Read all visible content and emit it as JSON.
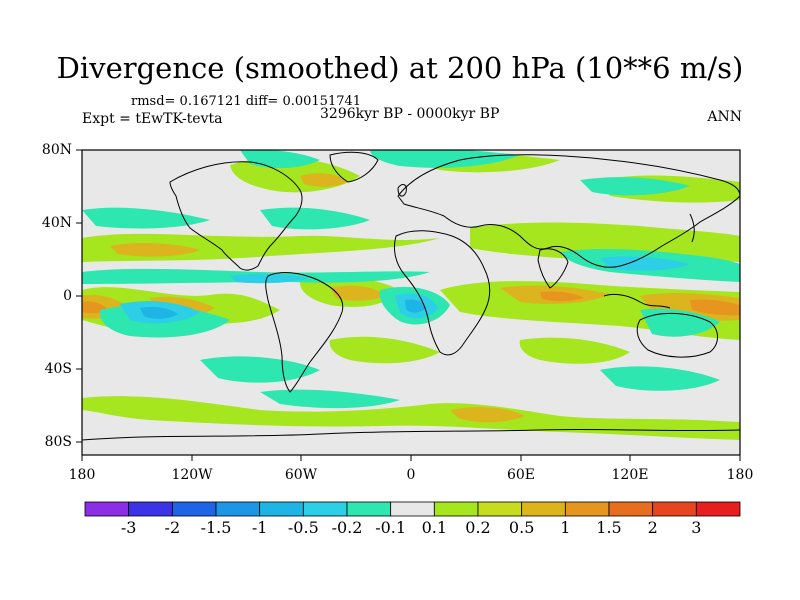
{
  "header": {
    "title": "Divergence (smoothed) at 200 hPa (10**6 m/s)",
    "stats": "rmsd= 0.167121 diff= 0.00151741",
    "experiment": "Expt = tEwTK-tevta",
    "period": "3296kyr BP - 0000kyr BP",
    "season": "ANN"
  },
  "axes": {
    "lat_labels": [
      "80N",
      "40N",
      "0",
      "40S",
      "80S"
    ],
    "lon_labels": [
      "180",
      "120W",
      "60W",
      "0",
      "60E",
      "120E",
      "180"
    ]
  },
  "colorbar": {
    "labels": [
      "-3",
      "-2",
      "-1.5",
      "-1",
      "-0.5",
      "-0.2",
      "-0.1",
      "0.1",
      "0.2",
      "0.5",
      "1",
      "1.5",
      "2",
      "3"
    ],
    "colors": [
      "#8b2ee6",
      "#3c32e6",
      "#1e64e6",
      "#1e96e6",
      "#1eb4e6",
      "#2ccfe6",
      "#2ee6b0",
      "#e8e8e8",
      "#a6e61e",
      "#c8dc1e",
      "#dcb41e",
      "#e6961e",
      "#e66e1e",
      "#e6461e",
      "#e61e1e"
    ],
    "neutral_color": "#e8e8e8"
  },
  "map_layers": {
    "zero_band_color": "#e8e8e8",
    "positive_colors": [
      "#a6e61e",
      "#dcb41e",
      "#e6961e"
    ],
    "negative_colors": [
      "#2ee6b0",
      "#2ccfe6",
      "#1eb4e6"
    ]
  }
}
